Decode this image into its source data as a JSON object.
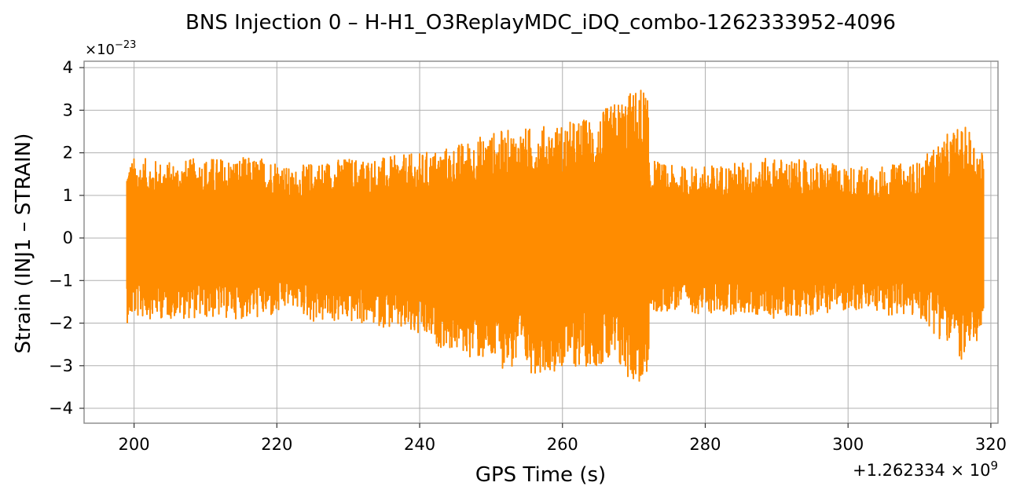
{
  "chart_data": {
    "type": "line",
    "title": "BNS Injection 0 – H-H1_O3ReplayMDC_iDQ_combo-1262333952-4096",
    "xlabel": "GPS Time (s)",
    "ylabel": "Strain (INJ1 – STRAIN)",
    "y_multiplier_label": "×10",
    "y_multiplier_exponent": "−23",
    "x_offset_label": "+1.262334 × 10",
    "x_offset_exponent": "9",
    "xlim": [
      193,
      321
    ],
    "ylim": [
      -4.35,
      4.15
    ],
    "x_ticks": [
      200,
      220,
      240,
      260,
      280,
      300,
      320
    ],
    "x_tick_labels": [
      "200",
      "220",
      "240",
      "260",
      "280",
      "300",
      "320"
    ],
    "y_ticks": [
      -4,
      -3,
      -2,
      -1,
      0,
      1,
      2,
      3,
      4
    ],
    "y_tick_labels": [
      "−4",
      "−3",
      "−2",
      "−1",
      "0",
      "1",
      "2",
      "3",
      "4"
    ],
    "grid": true,
    "line_color": "#ff8c00",
    "series": [
      {
        "x_start": 199,
        "x_end": 319,
        "envelope": {
          "x": [
            199,
            200,
            205,
            210,
            215,
            220,
            222,
            225,
            230,
            235,
            240,
            245,
            250,
            255,
            260,
            265,
            268,
            271,
            271.9,
            272.2,
            275,
            280,
            285,
            290,
            295,
            300,
            305,
            310,
            313,
            315,
            317,
            319
          ],
          "upper": [
            1.8,
            1.9,
            1.8,
            1.9,
            1.9,
            1.9,
            1.6,
            1.8,
            1.9,
            1.9,
            2.0,
            2.2,
            2.5,
            2.6,
            2.7,
            2.9,
            3.3,
            3.6,
            3.5,
            1.9,
            1.7,
            1.7,
            1.8,
            1.9,
            1.8,
            1.7,
            1.7,
            1.8,
            2.3,
            2.6,
            2.6,
            2.0
          ],
          "lower": [
            -2.0,
            -1.9,
            -1.9,
            -1.9,
            -1.9,
            -1.9,
            -1.6,
            -2.0,
            -2.0,
            -2.1,
            -2.4,
            -2.7,
            -3.0,
            -3.2,
            -3.1,
            -3.0,
            -3.2,
            -3.5,
            -3.9,
            -1.9,
            -1.7,
            -1.8,
            -1.8,
            -1.9,
            -1.8,
            -1.7,
            -1.8,
            -1.9,
            -2.4,
            -2.7,
            -3.1,
            -2.0
          ]
        }
      }
    ]
  }
}
